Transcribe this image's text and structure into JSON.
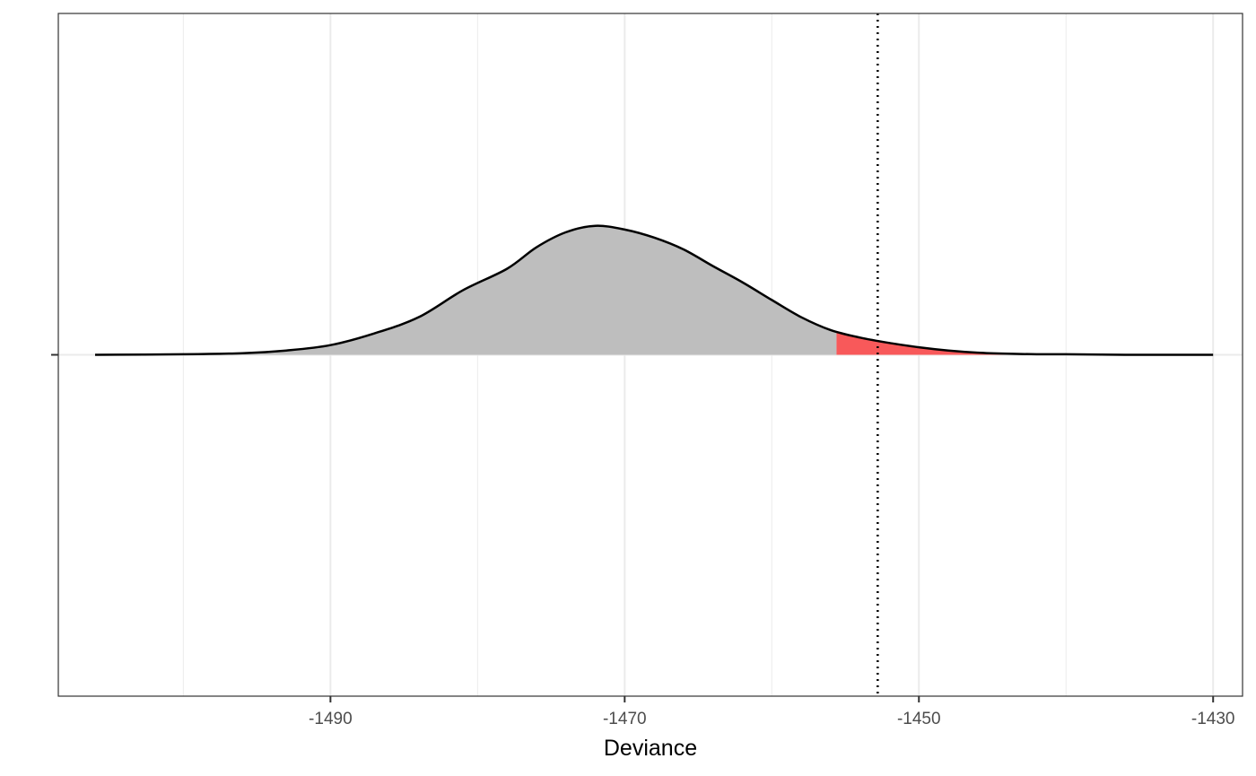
{
  "chart_data": {
    "type": "area",
    "title": "",
    "xlabel": "Deviance",
    "ylabel": "",
    "xlim": [
      -1508.5,
      -1428.0
    ],
    "ylim": [
      -0.0635,
      0.0635
    ],
    "x_ticks": [
      -1490,
      -1470,
      -1450,
      -1430
    ],
    "x_tick_labels": [
      "-1490",
      "-1470",
      "-1450",
      "-1430"
    ],
    "grid": true,
    "legend": "none",
    "series": [
      {
        "x": [
          -1506,
          -1500,
          -1496,
          -1493,
          -1490,
          -1487,
          -1484,
          -1481,
          -1478,
          -1476,
          -1474,
          -1472,
          -1470,
          -1468,
          -1466,
          -1464,
          -1462,
          -1460,
          -1458,
          -1456,
          -1454,
          -1452,
          -1450,
          -1448,
          -1446,
          -1444,
          -1442,
          -1440,
          -1436,
          -1430
        ],
        "values": [
          0.0,
          0.0001,
          0.0003,
          0.0008,
          0.0018,
          0.004,
          0.007,
          0.012,
          0.016,
          0.02,
          0.0228,
          0.024,
          0.0233,
          0.0218,
          0.0196,
          0.0165,
          0.0135,
          0.0102,
          0.007,
          0.0046,
          0.0032,
          0.0022,
          0.0014,
          0.0008,
          0.0004,
          0.0002,
          0.0001,
          0.0001,
          0.0,
          0.0
        ]
      }
    ],
    "observed_value": -1452.8,
    "tail_threshold": -1455.6,
    "colors": {
      "density_fill": "#bebebe",
      "tail_fill": "#f8595a",
      "curve": "#000000",
      "reference_line": "#000000",
      "grid": "#ebebeb",
      "panel_border": "#333333"
    }
  }
}
